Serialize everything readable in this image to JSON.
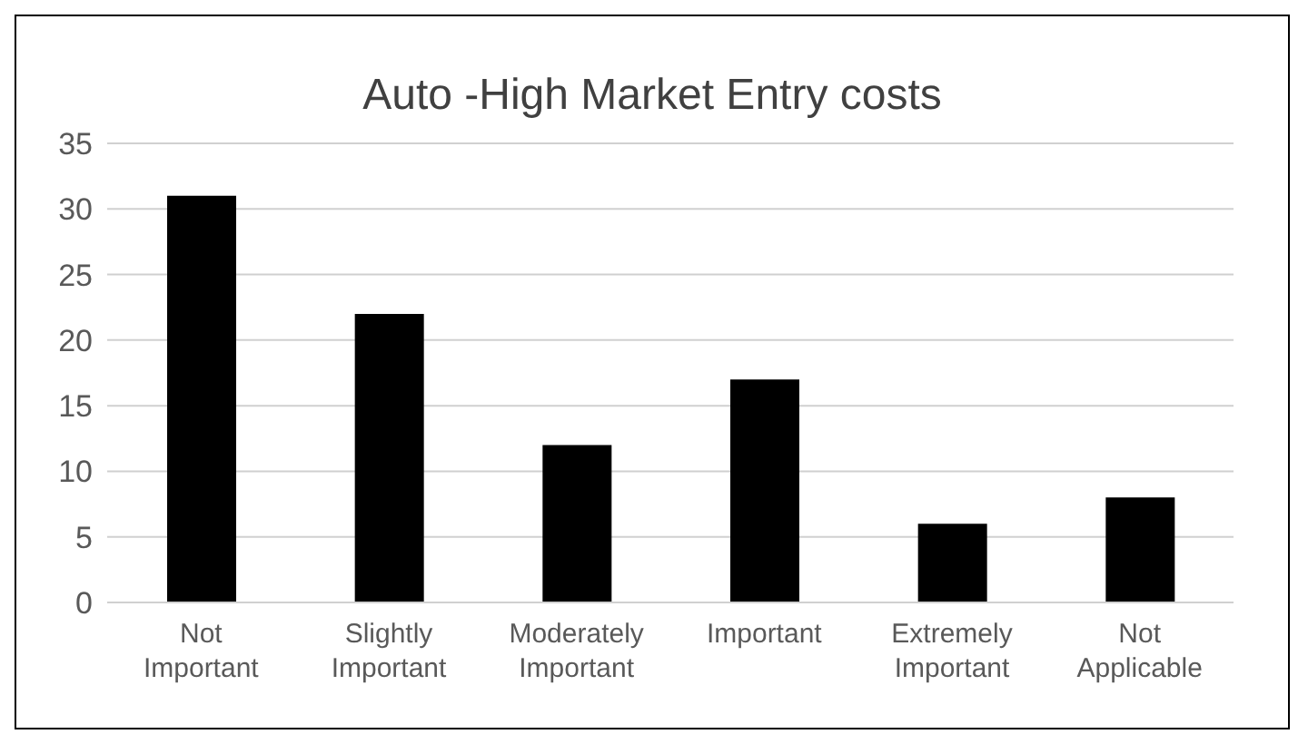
{
  "chart_data": {
    "type": "bar",
    "title": "Auto -High Market Entry costs",
    "categories": [
      "Not Important",
      "Slightly Important",
      "Moderately Important",
      "Important",
      "Extremely Important",
      "Not Applicable"
    ],
    "values": [
      31,
      22,
      12,
      17,
      6,
      8
    ],
    "color": "#000000",
    "ylim": [
      0,
      35
    ],
    "yticks": [
      0,
      5,
      10,
      15,
      20,
      25,
      30,
      35
    ],
    "grid": "y"
  }
}
